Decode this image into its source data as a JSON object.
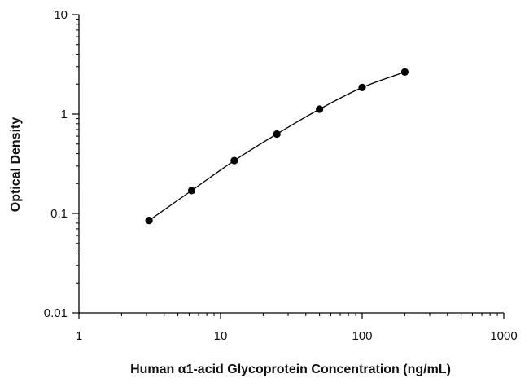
{
  "chart_data": {
    "type": "scatter",
    "title": "",
    "xlabel": "Human α1-acid Glycoprotein Concentration (ng/mL)",
    "ylabel": "Optical Density",
    "xscale": "log",
    "yscale": "log",
    "xlim": [
      1,
      1000
    ],
    "ylim": [
      0.01,
      10
    ],
    "grid": false,
    "legend": "none",
    "x_ticks": [
      1,
      10,
      100,
      1000
    ],
    "x_tick_labels": [
      "1",
      "10",
      "100",
      "1000"
    ],
    "y_ticks": [
      0.01,
      0.1,
      1,
      10
    ],
    "y_tick_labels": [
      "0.01",
      "0.1",
      "1",
      "10"
    ],
    "series": [
      {
        "x": [
          3.125,
          6.25,
          12.5,
          25,
          50,
          100,
          200
        ],
        "y": [
          0.085,
          0.17,
          0.34,
          0.63,
          1.12,
          1.85,
          2.65
        ],
        "marker": "filled-circle",
        "fit_line": true
      }
    ],
    "colors": {
      "marker": "#000000",
      "line": "#000000",
      "axis": "#000000"
    }
  }
}
